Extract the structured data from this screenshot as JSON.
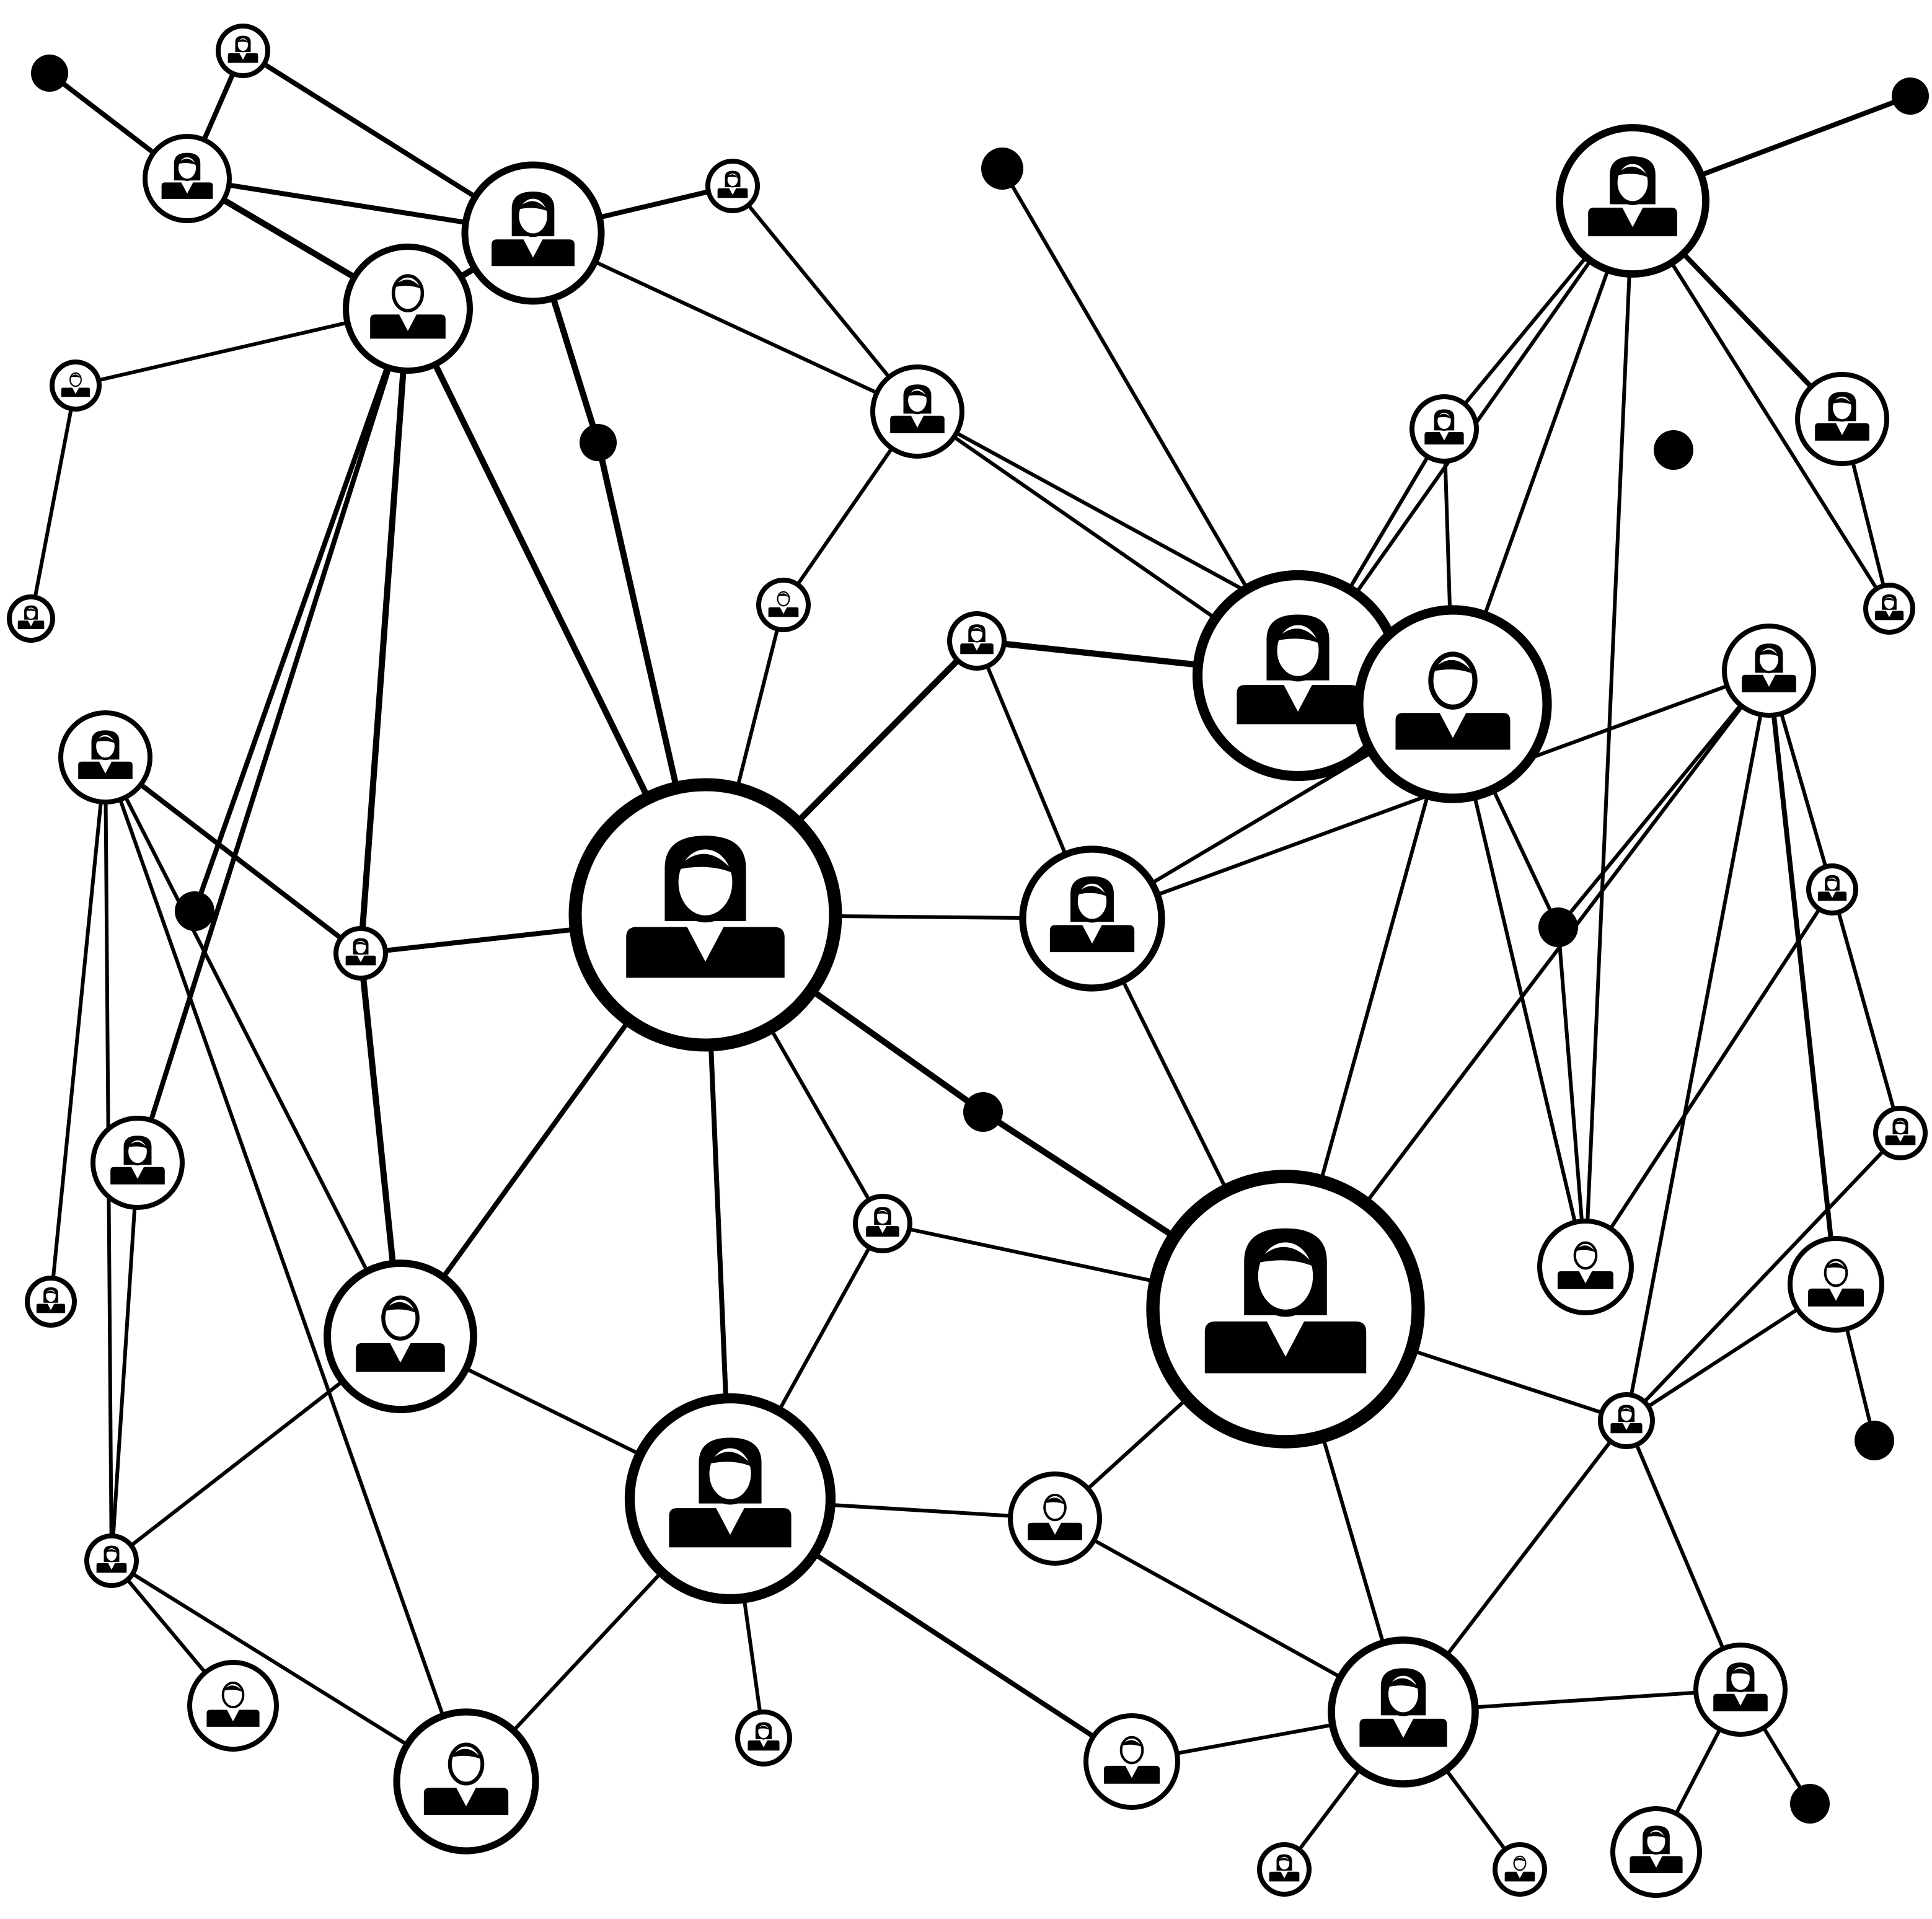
{
  "palette": {
    "ink": "#000000",
    "paper": "#ffffff"
  },
  "nodes": [
    {
      "id": "n1",
      "kind": "person",
      "icon": "man-icon"
    },
    {
      "id": "n2",
      "kind": "person",
      "icon": "woman-icon"
    },
    {
      "id": "n3",
      "kind": "person",
      "icon": "woman-icon"
    },
    {
      "id": "n4",
      "kind": "person",
      "icon": "woman-icon"
    },
    {
      "id": "n5",
      "kind": "person",
      "icon": "man-icon"
    },
    {
      "id": "n6",
      "kind": "person",
      "icon": "woman-icon"
    },
    {
      "id": "n7",
      "kind": "person",
      "icon": "woman-icon"
    },
    {
      "id": "n8",
      "kind": "person",
      "icon": "woman-icon"
    },
    {
      "id": "n9",
      "kind": "person",
      "icon": "woman-icon"
    },
    {
      "id": "n10",
      "kind": "person",
      "icon": "woman-icon"
    },
    {
      "id": "n11",
      "kind": "person",
      "icon": "woman-icon"
    },
    {
      "id": "n12",
      "kind": "person",
      "icon": "woman-icon"
    },
    {
      "id": "n13",
      "kind": "person",
      "icon": "woman-icon"
    },
    {
      "id": "n14",
      "kind": "person",
      "icon": "man-icon"
    },
    {
      "id": "n15",
      "kind": "person",
      "icon": "woman-icon"
    },
    {
      "id": "n16",
      "kind": "person",
      "icon": "woman-icon"
    },
    {
      "id": "n17",
      "kind": "person",
      "icon": "man-icon"
    },
    {
      "id": "n18",
      "kind": "person",
      "icon": "woman-icon"
    },
    {
      "id": "n19",
      "kind": "person",
      "icon": "woman-icon"
    },
    {
      "id": "n20",
      "kind": "person",
      "icon": "man-icon"
    },
    {
      "id": "n21",
      "kind": "person",
      "icon": "woman-icon"
    },
    {
      "id": "n22",
      "kind": "person",
      "icon": "man-icon"
    },
    {
      "id": "n23",
      "kind": "person",
      "icon": "woman-icon"
    },
    {
      "id": "n24",
      "kind": "person",
      "icon": "woman-icon"
    },
    {
      "id": "n25",
      "kind": "person",
      "icon": "man-icon"
    },
    {
      "id": "n26",
      "kind": "person",
      "icon": "woman-icon"
    },
    {
      "id": "n27",
      "kind": "person",
      "icon": "woman-icon"
    },
    {
      "id": "n28",
      "kind": "person",
      "icon": "woman-icon"
    },
    {
      "id": "n29",
      "kind": "person",
      "icon": "man-icon"
    },
    {
      "id": "n30",
      "kind": "person",
      "icon": "man-icon"
    },
    {
      "id": "n31",
      "kind": "person",
      "icon": "man-icon"
    },
    {
      "id": "n32",
      "kind": "person",
      "icon": "woman-icon"
    },
    {
      "id": "n33",
      "kind": "person",
      "icon": "woman-icon"
    },
    {
      "id": "n34",
      "kind": "person",
      "icon": "woman-icon"
    },
    {
      "id": "n35",
      "kind": "person",
      "icon": "woman-icon"
    },
    {
      "id": "n36",
      "kind": "person",
      "icon": "woman-icon"
    },
    {
      "id": "n37",
      "kind": "person",
      "icon": "woman-icon"
    },
    {
      "id": "n38",
      "kind": "person",
      "icon": "man-icon"
    },
    {
      "id": "n39",
      "kind": "person",
      "icon": "man-icon"
    },
    {
      "id": "n40",
      "kind": "person",
      "icon": "woman-icon"
    },
    {
      "id": "n41",
      "kind": "person",
      "icon": "man-icon"
    },
    {
      "id": "n42",
      "kind": "person",
      "icon": "woman-icon"
    },
    {
      "id": "n43",
      "kind": "person",
      "icon": "woman-icon"
    },
    {
      "id": "n44",
      "kind": "person",
      "icon": "woman-icon"
    },
    {
      "id": "n45",
      "kind": "person",
      "icon": "man-icon"
    },
    {
      "id": "n46",
      "kind": "person",
      "icon": "woman-icon"
    },
    {
      "id": "d1",
      "kind": "dot"
    },
    {
      "id": "d2",
      "kind": "dot"
    },
    {
      "id": "d3",
      "kind": "dot"
    },
    {
      "id": "d4",
      "kind": "dot"
    },
    {
      "id": "d5",
      "kind": "dot"
    },
    {
      "id": "d6",
      "kind": "dot"
    },
    {
      "id": "d7",
      "kind": "dot"
    },
    {
      "id": "d8",
      "kind": "dot"
    },
    {
      "id": "d9",
      "kind": "dot"
    },
    {
      "id": "d10",
      "kind": "dot"
    },
    {
      "id": "d11",
      "kind": "dot"
    }
  ],
  "edges": [
    [
      "n1",
      "n3"
    ],
    [
      "n1",
      "n4"
    ],
    [
      "n1",
      "n2"
    ],
    [
      "n1",
      "n5"
    ],
    [
      "n1",
      "d3"
    ],
    [
      "n1",
      "n17"
    ],
    [
      "n1",
      "n19"
    ],
    [
      "n1",
      "d5"
    ],
    [
      "n2",
      "d1"
    ],
    [
      "n2",
      "n3"
    ],
    [
      "n3",
      "n7"
    ],
    [
      "n3",
      "n8"
    ],
    [
      "n3",
      "n16"
    ],
    [
      "n3",
      "n1"
    ],
    [
      "n5",
      "n6"
    ],
    [
      "n6",
      "n18"
    ],
    [
      "n7",
      "d4"
    ],
    [
      "d4",
      "n19"
    ],
    [
      "n8",
      "n10"
    ],
    [
      "n8",
      "n21"
    ],
    [
      "n8",
      "n16"
    ],
    [
      "n16",
      "n19"
    ],
    [
      "n10",
      "d2"
    ],
    [
      "n10",
      "n9"
    ],
    [
      "n10",
      "n11"
    ],
    [
      "n10",
      "n12"
    ],
    [
      "n10",
      "n20"
    ],
    [
      "n10",
      "n21"
    ],
    [
      "n10",
      "n13"
    ],
    [
      "n11",
      "n14"
    ],
    [
      "n12",
      "n14"
    ],
    [
      "n12",
      "n13"
    ],
    [
      "n12",
      "n15"
    ],
    [
      "n12",
      "n20"
    ],
    [
      "n12",
      "d6"
    ],
    [
      "n13",
      "n22"
    ],
    [
      "d6",
      "n15"
    ],
    [
      "d6",
      "n26"
    ],
    [
      "n20",
      "n21"
    ],
    [
      "n21",
      "n26"
    ],
    [
      "n21",
      "n25"
    ],
    [
      "n21",
      "n23"
    ],
    [
      "n14",
      "d7"
    ],
    [
      "n23",
      "n24"
    ],
    [
      "n23",
      "n27"
    ],
    [
      "n23",
      "d8"
    ],
    [
      "n26",
      "d8"
    ],
    [
      "n26",
      "n27"
    ],
    [
      "d7",
      "n25"
    ],
    [
      "n25",
      "n34"
    ],
    [
      "n27",
      "n33"
    ],
    [
      "n27",
      "n29"
    ],
    [
      "n29",
      "d10"
    ],
    [
      "n34",
      "n36"
    ],
    [
      "n34",
      "n32"
    ],
    [
      "n34",
      "n30"
    ],
    [
      "n34",
      "n25"
    ],
    [
      "n32",
      "n19"
    ],
    [
      "n19",
      "d9"
    ],
    [
      "d9",
      "n25"
    ],
    [
      "n19",
      "n27"
    ],
    [
      "n19",
      "n28"
    ],
    [
      "n19",
      "n29"
    ],
    [
      "n19",
      "n39"
    ],
    [
      "n19",
      "n33"
    ],
    [
      "n17",
      "n31"
    ],
    [
      "n17",
      "n32"
    ],
    [
      "n17",
      "n28"
    ],
    [
      "n17",
      "n19"
    ],
    [
      "n17",
      "n34"
    ],
    [
      "n31",
      "n18"
    ],
    [
      "n31",
      "n39"
    ],
    [
      "n31",
      "n40"
    ],
    [
      "n30",
      "n39"
    ],
    [
      "n30",
      "n36"
    ],
    [
      "n35",
      "n38"
    ],
    [
      "n38",
      "n36"
    ],
    [
      "n38",
      "n37"
    ],
    [
      "n36",
      "n37"
    ],
    [
      "n36",
      "n45"
    ],
    [
      "n36",
      "n41"
    ],
    [
      "n36",
      "n42"
    ],
    [
      "n39",
      "n42"
    ],
    [
      "n39",
      "n40"
    ],
    [
      "n41",
      "n40"
    ],
    [
      "n41",
      "n43"
    ],
    [
      "n42",
      "n45"
    ],
    [
      "n42",
      "n46"
    ],
    [
      "n44",
      "n46"
    ],
    [
      "n45",
      "n46"
    ],
    [
      "n45",
      "d11"
    ],
    [
      "n46",
      "n40"
    ],
    [
      "n33",
      "n46"
    ],
    [
      "n27",
      "n28"
    ],
    [
      "n24",
      "n27"
    ]
  ]
}
